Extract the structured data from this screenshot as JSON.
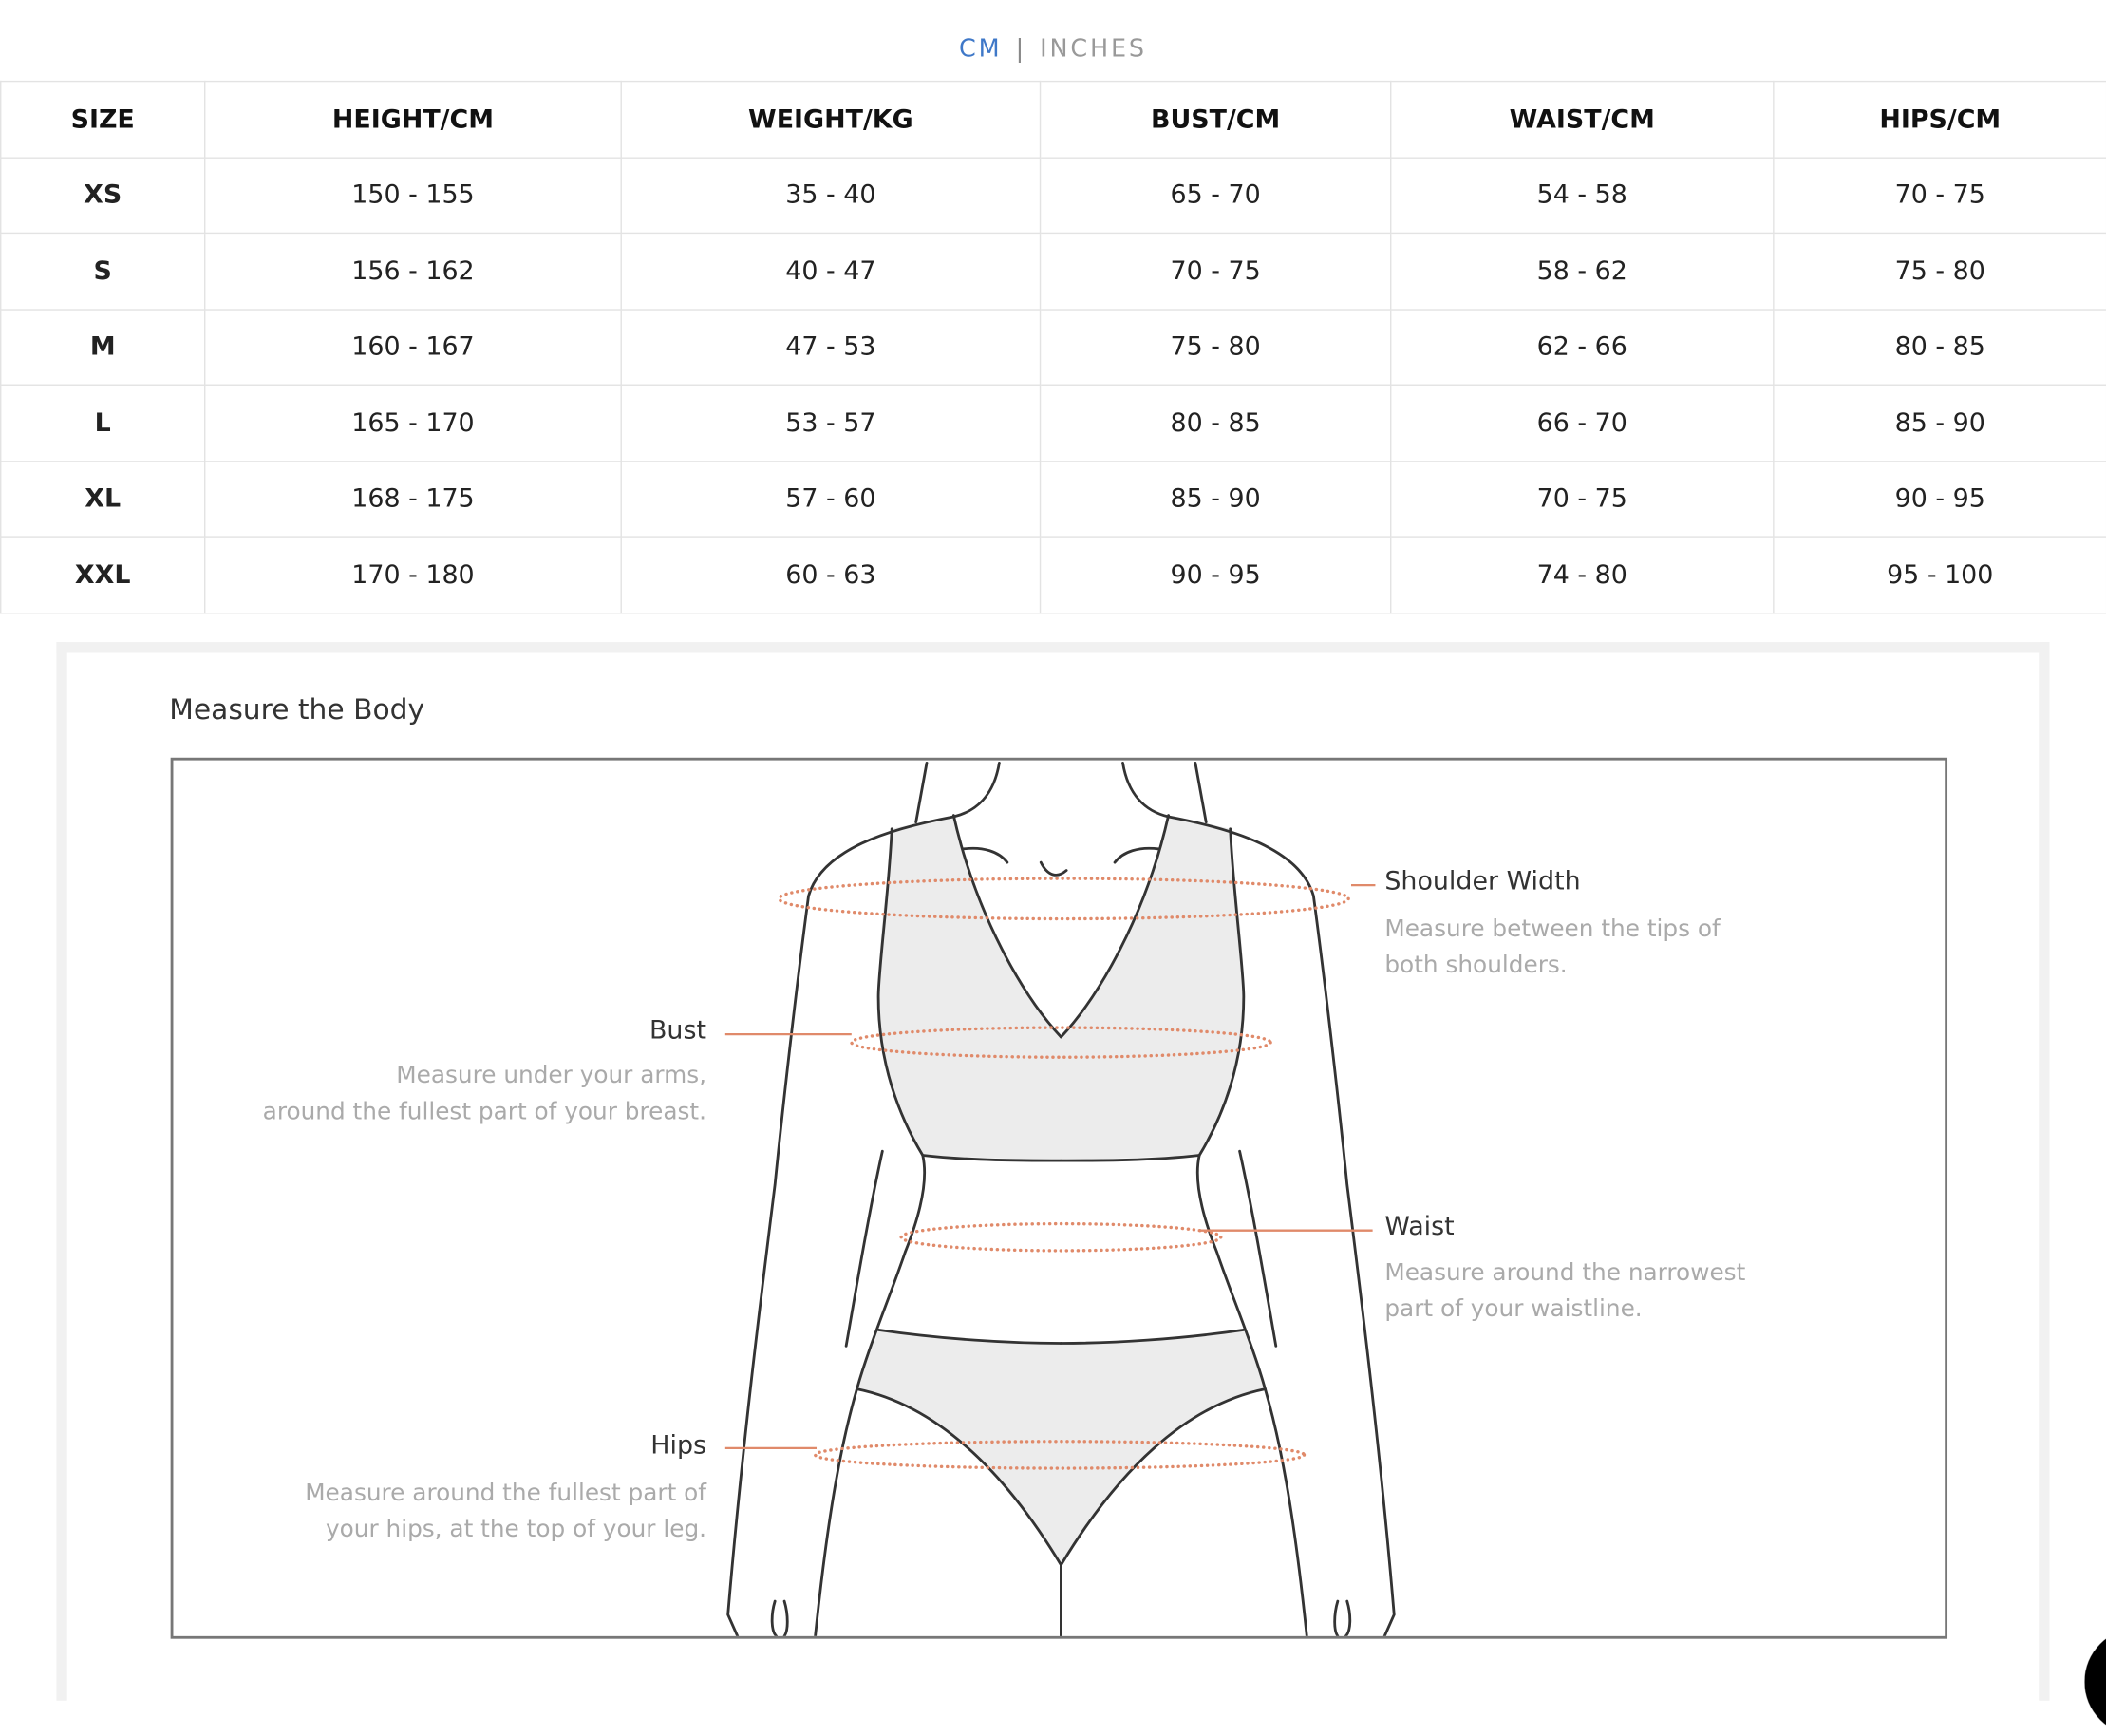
{
  "unit_toggle": {
    "cm": "CM",
    "separator": "|",
    "inches": "INCHES",
    "active": "CM",
    "active_color": "#3f78c8"
  },
  "table": {
    "headers": [
      "SIZE",
      "HEIGHT/CM",
      "WEIGHT/KG",
      "BUST/CM",
      "WAIST/CM",
      "HIPS/CM"
    ],
    "rows": [
      [
        "XS",
        "150 - 155",
        "35 - 40",
        "65 - 70",
        "54 - 58",
        "70 - 75"
      ],
      [
        "S",
        "156 - 162",
        "40 - 47",
        "70 - 75",
        "58 - 62",
        "75 - 80"
      ],
      [
        "M",
        "160 - 167",
        "47 - 53",
        "75 - 80",
        "62 - 66",
        "80 - 85"
      ],
      [
        "L",
        "165 - 170",
        "53 - 57",
        "80 - 85",
        "66 - 70",
        "85 - 90"
      ],
      [
        "XL",
        "168 - 175",
        "57 - 60",
        "85 - 90",
        "70 - 75",
        "90 - 95"
      ],
      [
        "XXL",
        "170 - 180",
        "60 - 63",
        "90 - 95",
        "74 - 80",
        "95 - 100"
      ]
    ]
  },
  "guide": {
    "title": "Measure the Body",
    "measure_color": "#e08a6a",
    "shoulder": {
      "label": "Shoulder Width",
      "desc": [
        "Measure between the tips of",
        "both shoulders."
      ]
    },
    "bust": {
      "label": "Bust",
      "desc": [
        "Measure under your arms,",
        "around the fullest part of your breast."
      ]
    },
    "waist": {
      "label": "Waist",
      "desc": [
        "Measure around the narrowest",
        "part of your waistline."
      ]
    },
    "hips": {
      "label": "Hips",
      "desc": [
        "Measure around the fullest part of",
        "your hips, at the top of your leg."
      ]
    }
  }
}
